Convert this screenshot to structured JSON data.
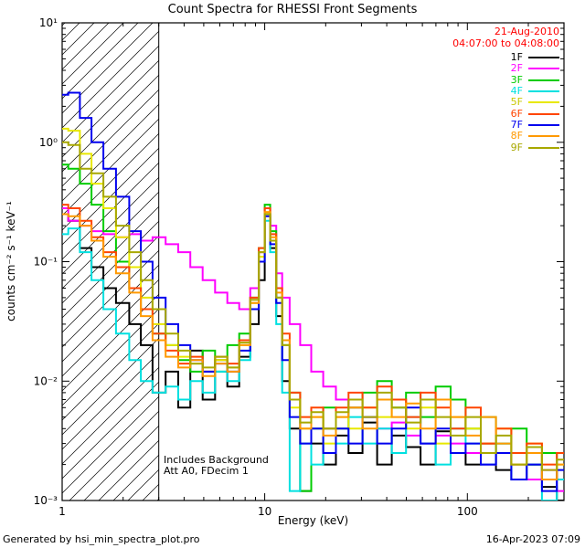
{
  "header": {
    "title": "Count Spectra for RHESSI Front Segments"
  },
  "observation": {
    "date": "21-Aug-2010",
    "time_range": "04:07:00 to 04:08:00"
  },
  "notes": {
    "background": "Includes Background",
    "attenuator": "Att A0, FDecim 1"
  },
  "footer": {
    "generated_by": "Generated by hsi_min_spectra_plot.pro",
    "timestamp": "16-Apr-2023 07:09"
  },
  "colors": {
    "annotation_red": "#FF0000",
    "axis": "#000000",
    "background": "#FFFFFF"
  },
  "chart_data": {
    "type": "line",
    "title": "Count Spectra for RHESSI Front Segments",
    "xlabel": "Energy (keV)",
    "ylabel": "counts cm⁻² s⁻¹ keV⁻¹",
    "xscale": "log",
    "yscale": "log",
    "xlim": [
      1,
      300
    ],
    "ylim": [
      0.001,
      10
    ],
    "grid": false,
    "legend_position": "top-right",
    "hatched_region_kev": [
      1,
      3
    ],
    "x_ticks": [
      {
        "value": 1,
        "label": "1"
      },
      {
        "value": 10,
        "label": "10"
      },
      {
        "value": 100,
        "label": "100"
      }
    ],
    "y_ticks": [
      {
        "value": 0.001,
        "label": "10⁻³"
      },
      {
        "value": 0.01,
        "label": "10⁻²"
      },
      {
        "value": 0.1,
        "label": "10⁻¹"
      },
      {
        "value": 1,
        "label": "10⁰"
      },
      {
        "value": 10,
        "label": "10¹"
      }
    ],
    "x": [
      1.0,
      1.15,
      1.3,
      1.5,
      1.7,
      2.0,
      2.3,
      2.6,
      3.0,
      3.5,
      4.0,
      4.6,
      5.3,
      6.1,
      7.0,
      8.0,
      9.0,
      9.7,
      10.3,
      11.0,
      11.8,
      12.6,
      14,
      16,
      18,
      21,
      24,
      28,
      33,
      39,
      46,
      54,
      64,
      76,
      90,
      107,
      127,
      151,
      180,
      214,
      255,
      300
    ],
    "series": [
      {
        "name": "1F",
        "color": "#000000",
        "values": [
          0.25,
          0.22,
          0.13,
          0.09,
          0.06,
          0.045,
          0.03,
          0.02,
          0.008,
          0.012,
          0.006,
          0.018,
          0.007,
          0.015,
          0.009,
          0.016,
          0.03,
          0.07,
          0.25,
          0.13,
          0.035,
          0.01,
          0.004,
          0.0012,
          0.003,
          0.002,
          0.0035,
          0.0025,
          0.0045,
          0.002,
          0.0035,
          0.0028,
          0.002,
          0.0038,
          0.0025,
          0.002,
          0.003,
          0.0018,
          0.0015,
          0.002,
          0.0013,
          0.001
        ]
      },
      {
        "name": "2F",
        "color": "#FF00FF",
        "values": [
          0.28,
          0.22,
          0.2,
          0.18,
          0.17,
          0.16,
          0.17,
          0.15,
          0.16,
          0.14,
          0.12,
          0.09,
          0.07,
          0.055,
          0.045,
          0.04,
          0.06,
          0.12,
          0.28,
          0.2,
          0.08,
          0.05,
          0.03,
          0.02,
          0.012,
          0.009,
          0.007,
          0.006,
          0.005,
          0.004,
          0.0045,
          0.0035,
          0.003,
          0.0035,
          0.003,
          0.0025,
          0.002,
          0.0025,
          0.002,
          0.0015,
          0.0018,
          0.0012
        ]
      },
      {
        "name": "3F",
        "color": "#00CC00",
        "values": [
          0.65,
          0.6,
          0.45,
          0.3,
          0.18,
          0.1,
          0.06,
          0.04,
          0.025,
          0.02,
          0.015,
          0.012,
          0.018,
          0.012,
          0.02,
          0.025,
          0.05,
          0.13,
          0.3,
          0.18,
          0.05,
          0.02,
          0.008,
          0.0012,
          0.004,
          0.006,
          0.004,
          0.006,
          0.008,
          0.01,
          0.006,
          0.008,
          0.005,
          0.009,
          0.007,
          0.004,
          0.005,
          0.003,
          0.004,
          0.002,
          0.0025,
          0.0015
        ]
      },
      {
        "name": "4F",
        "color": "#00E0E0",
        "values": [
          0.17,
          0.19,
          0.12,
          0.07,
          0.04,
          0.025,
          0.015,
          0.01,
          0.008,
          0.009,
          0.007,
          0.01,
          0.008,
          0.012,
          0.01,
          0.015,
          0.04,
          0.1,
          0.22,
          0.12,
          0.03,
          0.008,
          0.0012,
          0.003,
          0.002,
          0.004,
          0.003,
          0.005,
          0.003,
          0.004,
          0.0025,
          0.005,
          0.003,
          0.002,
          0.004,
          0.003,
          0.002,
          0.003,
          0.0015,
          0.002,
          0.001,
          0.0015
        ]
      },
      {
        "name": "5F",
        "color": "#E8E800",
        "values": [
          1.3,
          1.25,
          0.8,
          0.45,
          0.28,
          0.16,
          0.09,
          0.05,
          0.03,
          0.02,
          0.016,
          0.014,
          0.012,
          0.015,
          0.013,
          0.02,
          0.045,
          0.11,
          0.26,
          0.15,
          0.05,
          0.02,
          0.006,
          0.004,
          0.005,
          0.003,
          0.005,
          0.004,
          0.006,
          0.005,
          0.007,
          0.004,
          0.006,
          0.003,
          0.005,
          0.004,
          0.003,
          0.004,
          0.002,
          0.003,
          0.0015,
          0.002
        ]
      },
      {
        "name": "6F",
        "color": "#FF4500",
        "values": [
          0.3,
          0.28,
          0.22,
          0.16,
          0.12,
          0.09,
          0.06,
          0.04,
          0.025,
          0.018,
          0.014,
          0.016,
          0.012,
          0.016,
          0.014,
          0.022,
          0.05,
          0.13,
          0.28,
          0.17,
          0.06,
          0.025,
          0.008,
          0.005,
          0.006,
          0.004,
          0.006,
          0.008,
          0.006,
          0.009,
          0.007,
          0.005,
          0.008,
          0.006,
          0.004,
          0.006,
          0.003,
          0.004,
          0.0025,
          0.003,
          0.002,
          0.0025
        ]
      },
      {
        "name": "7F",
        "color": "#0000EE",
        "values": [
          2.5,
          2.6,
          1.6,
          1.0,
          0.6,
          0.35,
          0.18,
          0.1,
          0.05,
          0.03,
          0.02,
          0.015,
          0.012,
          0.014,
          0.012,
          0.018,
          0.04,
          0.1,
          0.24,
          0.14,
          0.045,
          0.015,
          0.005,
          0.003,
          0.004,
          0.0025,
          0.004,
          0.003,
          0.005,
          0.003,
          0.004,
          0.006,
          0.003,
          0.004,
          0.0025,
          0.003,
          0.002,
          0.0025,
          0.0015,
          0.002,
          0.0012,
          0.0018
        ]
      },
      {
        "name": "8F",
        "color": "#FF9900",
        "values": [
          0.25,
          0.24,
          0.2,
          0.15,
          0.11,
          0.08,
          0.055,
          0.035,
          0.022,
          0.016,
          0.013,
          0.015,
          0.011,
          0.014,
          0.012,
          0.02,
          0.045,
          0.12,
          0.26,
          0.16,
          0.055,
          0.022,
          0.007,
          0.004,
          0.005,
          0.0035,
          0.005,
          0.006,
          0.004,
          0.007,
          0.005,
          0.0065,
          0.004,
          0.007,
          0.005,
          0.0035,
          0.005,
          0.003,
          0.002,
          0.0025,
          0.0015,
          0.002
        ]
      },
      {
        "name": "9F",
        "color": "#A8A800",
        "values": [
          1.0,
          0.95,
          0.6,
          0.55,
          0.35,
          0.2,
          0.12,
          0.07,
          0.04,
          0.025,
          0.018,
          0.014,
          0.013,
          0.016,
          0.013,
          0.021,
          0.048,
          0.12,
          0.25,
          0.15,
          0.05,
          0.02,
          0.007,
          0.0045,
          0.0055,
          0.004,
          0.0055,
          0.007,
          0.005,
          0.008,
          0.006,
          0.0045,
          0.007,
          0.005,
          0.0035,
          0.005,
          0.0025,
          0.0035,
          0.002,
          0.0028,
          0.0018,
          0.0022
        ]
      }
    ]
  }
}
